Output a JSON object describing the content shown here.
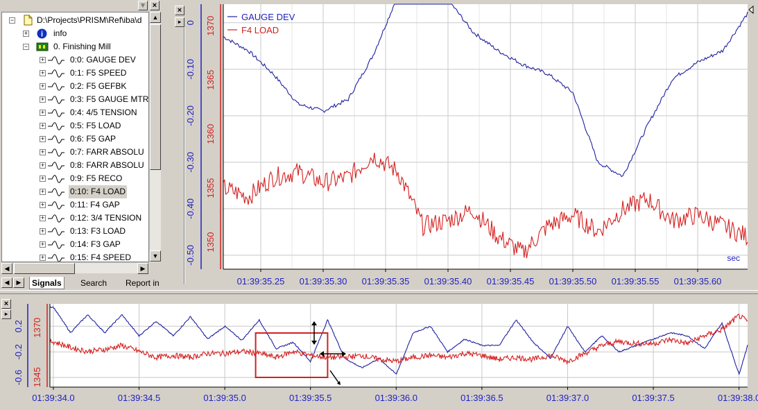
{
  "tree": {
    "root_path": "D:\\Projects\\PRISM\\Ref\\iba\\d",
    "info_label": "info",
    "group_label": "0.  Finishing Mill",
    "signals": [
      "0:0: GAUGE DEV",
      "0:1: F5 SPEED",
      "0:2: F5 GEFBK",
      "0:3: F5 GAUGE MTR",
      "0:4: 4/5 TENSION",
      "0:5: F5 LOAD",
      "0:6: F5 GAP",
      "0:7: FARR ABSOLU",
      "0:8: FARR ABSOLU",
      "0:9: F5 RECO",
      "0:10: F4 LOAD",
      "0:11: F4 GAP",
      "0:12: 3/4 TENSION",
      "0:13: F3 LOAD",
      "0:14: F3 GAP",
      "0:15: F4 SPEED"
    ],
    "selected_index": 10
  },
  "tabs": {
    "signals": "Signals",
    "search": "Search",
    "report": "Report in"
  },
  "colors": {
    "series_blue": "#1f1fa0",
    "series_red": "#d42020",
    "axis_blue": "#2020c0",
    "axis_red": "#d02020",
    "zoom_box": "#d02020"
  },
  "icons": {
    "close": "close-icon",
    "expand": "plus-icon",
    "collapse": "minus-icon",
    "file": "file-icon",
    "info": "info-icon",
    "module": "module-icon",
    "signal": "waveform-icon",
    "move": "move-arrows-icon"
  },
  "chart_data": [
    {
      "type": "line",
      "name": "zoomed",
      "series": [
        {
          "name": "GAUGE DEV",
          "axis": "left",
          "x": [
            35.22,
            35.24,
            35.26,
            35.28,
            35.3,
            35.32,
            35.34,
            35.36,
            35.38,
            35.4,
            35.42,
            35.44,
            35.46,
            35.48,
            35.5,
            35.52,
            35.54,
            35.56,
            35.58,
            35.6,
            35.62,
            35.64
          ],
          "values": [
            -0.03,
            -0.06,
            -0.11,
            -0.175,
            -0.19,
            -0.165,
            -0.07,
            0.06,
            0.12,
            0.05,
            -0.02,
            -0.06,
            -0.09,
            -0.11,
            -0.15,
            -0.3,
            -0.33,
            -0.22,
            -0.12,
            -0.085,
            -0.06,
            0.02
          ]
        },
        {
          "name": "F4 LOAD",
          "axis": "right",
          "x": [
            35.22,
            35.24,
            35.26,
            35.28,
            35.3,
            35.32,
            35.34,
            35.36,
            35.38,
            35.4,
            35.42,
            35.44,
            35.46,
            35.48,
            35.5,
            35.52,
            35.54,
            35.56,
            35.58,
            35.6,
            35.62,
            35.64
          ],
          "values": [
            1355.0,
            1354.2,
            1356.0,
            1356.5,
            1355.5,
            1356.0,
            1358.0,
            1356.5,
            1351.5,
            1352.0,
            1353.0,
            1350.5,
            1349.0,
            1351.5,
            1352.5,
            1351.0,
            1353.0,
            1354.0,
            1352.0,
            1352.5,
            1351.5,
            1350.5
          ]
        }
      ],
      "x_ticks": [
        "01:39:35.25",
        "01:39:35.30",
        "01:39:35.35",
        "01:39:35.40",
        "01:39:35.45",
        "01:39:35.50",
        "01:39:35.55",
        "01:39:35.60"
      ],
      "x_tick_values": [
        35.25,
        35.3,
        35.35,
        35.4,
        35.45,
        35.5,
        35.55,
        35.6
      ],
      "xlim": [
        35.22,
        35.64
      ],
      "y_left": {
        "ticks": [
          "0",
          "-0.10",
          "-0.20",
          "-0.30",
          "-0.40",
          "-0.50"
        ],
        "tick_values": [
          0,
          -0.1,
          -0.2,
          -0.3,
          -0.4,
          -0.5
        ],
        "ylim": [
          -0.53,
          0.04
        ]
      },
      "y_right": {
        "ticks": [
          "1370",
          "1365",
          "1360",
          "1355",
          "1350"
        ],
        "tick_values": [
          1370,
          1365,
          1360,
          1355,
          1350
        ],
        "ylim": [
          1347.5,
          1372
        ]
      },
      "x_unit": "sec",
      "grid": true,
      "legend": "top-left"
    },
    {
      "type": "line",
      "name": "overview",
      "series": [
        {
          "name": "GAUGE DEV",
          "axis": "left",
          "x": [
            34.0,
            34.1,
            34.2,
            34.3,
            34.4,
            34.5,
            34.6,
            34.7,
            34.8,
            34.9,
            35.0,
            35.1,
            35.2,
            35.3,
            35.4,
            35.5,
            35.6,
            35.7,
            35.8,
            35.9,
            36.0,
            36.1,
            36.2,
            36.3,
            36.4,
            36.5,
            36.6,
            36.7,
            36.8,
            36.9,
            37.0,
            37.1,
            37.2,
            37.3,
            37.4,
            37.5,
            37.6,
            37.7,
            37.8,
            37.9,
            38.0,
            38.05
          ],
          "values": [
            0.5,
            0.1,
            0.38,
            0.1,
            0.38,
            0.05,
            0.28,
            0.05,
            0.35,
            0.0,
            0.2,
            -0.02,
            0.3,
            -0.15,
            -0.05,
            -0.35,
            0.3,
            -0.3,
            -0.45,
            -0.3,
            -0.55,
            0.1,
            0.2,
            -0.2,
            0.0,
            -0.1,
            -0.1,
            0.3,
            -0.05,
            -0.3,
            0.2,
            -0.2,
            0.05,
            -0.2,
            -0.1,
            0.0,
            0.1,
            0.05,
            -0.15,
            0.25,
            -0.55,
            -0.1
          ]
        },
        {
          "name": "F4 LOAD",
          "axis": "right",
          "x": [
            34.0,
            34.1,
            34.2,
            34.3,
            34.4,
            34.5,
            34.6,
            34.7,
            34.8,
            34.9,
            35.0,
            35.1,
            35.2,
            35.3,
            35.4,
            35.5,
            35.6,
            35.7,
            35.8,
            35.9,
            36.0,
            36.1,
            36.2,
            36.3,
            36.4,
            36.5,
            36.6,
            36.7,
            36.8,
            36.9,
            37.0,
            37.1,
            37.2,
            37.3,
            37.4,
            37.5,
            37.6,
            37.7,
            37.8,
            37.9,
            38.0,
            38.05
          ],
          "values": [
            1363,
            1360,
            1358,
            1359,
            1361,
            1358,
            1355,
            1356,
            1355,
            1357,
            1357,
            1358,
            1357,
            1355,
            1358,
            1356,
            1355,
            1355,
            1356,
            1354,
            1353,
            1355,
            1356,
            1355,
            1357,
            1356,
            1354,
            1355,
            1354,
            1356,
            1353,
            1357,
            1361,
            1363,
            1362,
            1362,
            1364,
            1362,
            1366,
            1369,
            1376,
            1373
          ]
        }
      ],
      "x_ticks": [
        "01:39:34.0",
        "01:39:34.5",
        "01:39:35.0",
        "01:39:35.5",
        "01:39:36.0",
        "01:39:36.5",
        "01:39:37.0",
        "01:39:37.5",
        "01:39:38.0"
      ],
      "x_tick_values": [
        34.0,
        34.5,
        35.0,
        35.5,
        36.0,
        36.5,
        37.0,
        37.5,
        38.0
      ],
      "xlim": [
        33.98,
        38.05
      ],
      "y_left": {
        "ticks": [
          "0.2",
          "-0.2",
          "-0.6"
        ],
        "tick_values": [
          0.2,
          -0.2,
          -0.6
        ],
        "ylim": [
          -0.75,
          0.55
        ]
      },
      "y_right": {
        "ticks": [
          "1370",
          "1345"
        ],
        "tick_values": [
          1370,
          1345
        ],
        "ylim": [
          1340,
          1382
        ]
      },
      "zoom_window": [
        35.18,
        35.6
      ],
      "grid": true
    }
  ]
}
